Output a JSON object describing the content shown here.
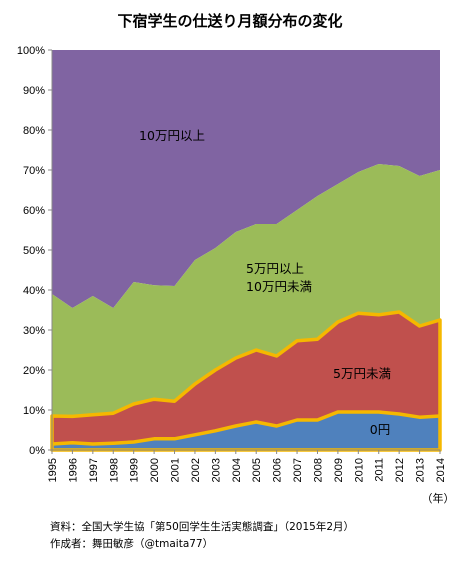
{
  "chart_data": {
    "type": "area",
    "title": "下宿学生の仕送り月額分布の変化",
    "x_unit_label": "（年）",
    "x": [
      1995,
      1996,
      1997,
      1998,
      1999,
      2000,
      2001,
      2002,
      2003,
      2004,
      2005,
      2006,
      2007,
      2008,
      2009,
      2010,
      2011,
      2012,
      2013,
      2014
    ],
    "ylim": [
      0,
      100
    ],
    "y_ticks": [
      "0%",
      "10%",
      "20%",
      "30%",
      "40%",
      "50%",
      "60%",
      "70%",
      "80%",
      "90%",
      "100%"
    ],
    "stacked_cumulative": true,
    "series": [
      {
        "name": "0円",
        "color": "#4f81bd",
        "values": [
          1.5,
          1.8,
          1.5,
          1.7,
          2.0,
          2.8,
          2.8,
          3.8,
          4.8,
          6.0,
          7.0,
          6.0,
          7.5,
          7.5,
          9.5,
          9.5,
          9.5,
          9.0,
          8.2,
          8.5
        ]
      },
      {
        "name": "5万円未満",
        "color": "#c0504d",
        "values": [
          8.5,
          8.4,
          8.8,
          9.2,
          11.5,
          12.7,
          12.2,
          16.5,
          20.0,
          23.0,
          25.0,
          23.5,
          27.3,
          27.7,
          32.0,
          34.2,
          33.8,
          34.5,
          31.0,
          32.5
        ]
      },
      {
        "name": "5万円以上\n10万円未満",
        "color": "#9bbb59",
        "values": [
          39.0,
          35.5,
          38.5,
          35.5,
          42.0,
          41.2,
          41.0,
          47.5,
          50.5,
          54.5,
          56.5,
          56.5,
          60.0,
          63.5,
          66.5,
          69.5,
          71.5,
          71.0,
          68.5,
          70.0
        ]
      },
      {
        "name": "10万円以上",
        "color": "#8064a2",
        "values": [
          100,
          100,
          100,
          100,
          100,
          100,
          100,
          100,
          100,
          100,
          100,
          100,
          100,
          100,
          100,
          100,
          100,
          100,
          100,
          100
        ]
      }
    ],
    "zero_highlight_color": "#f5b800",
    "grid": false
  },
  "labels": {
    "zero": "0円",
    "under5": "5万円未満",
    "mid_line1": "5万円以上",
    "mid_line2": "10万円未満",
    "over10": "10万円以上"
  },
  "footer": {
    "source": "資料：全国大学生協「第50回学生生活実態調査」（2015年2月）",
    "author": "作成者：舞田敏彦（@tmaita77）"
  }
}
